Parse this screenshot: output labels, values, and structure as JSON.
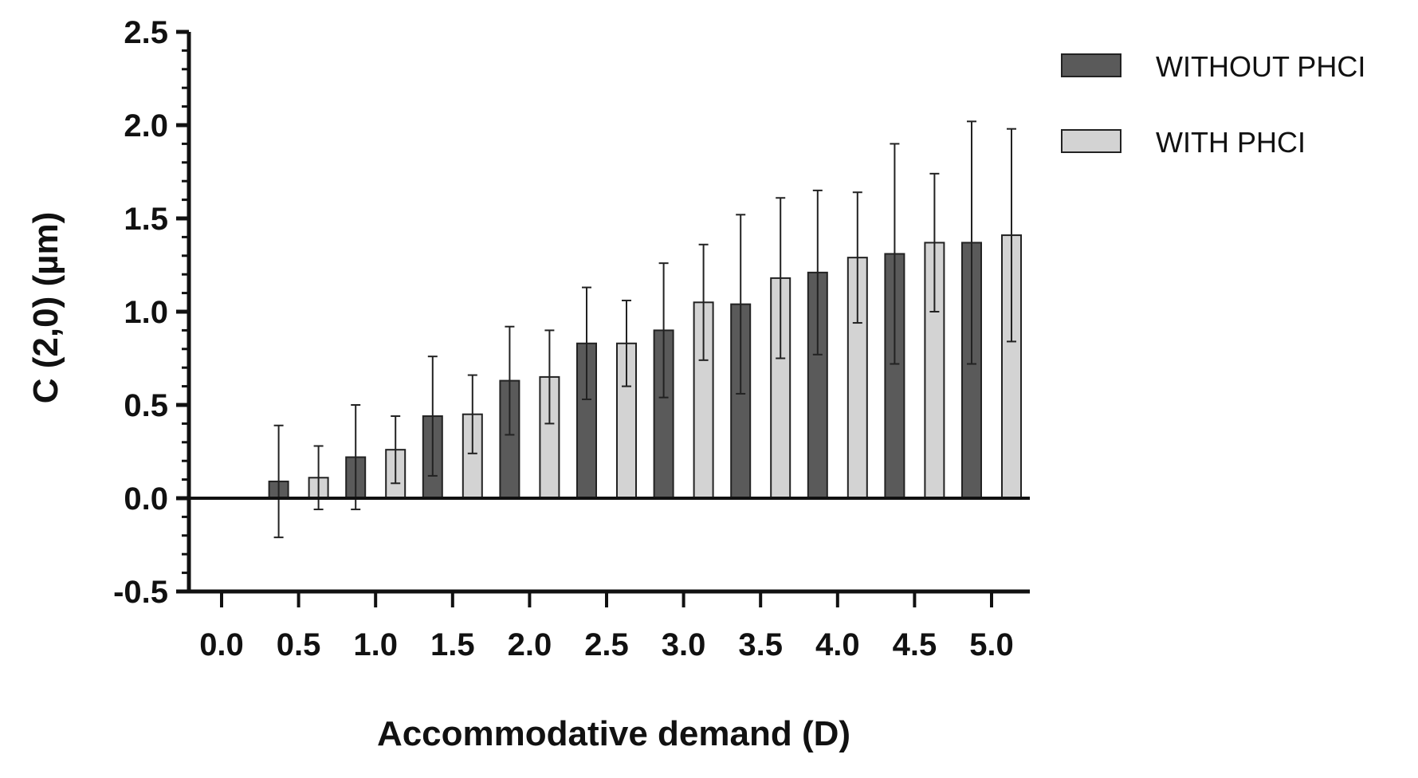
{
  "chart_data": {
    "type": "bar",
    "title": "",
    "xlabel": "Accommodative demand (D)",
    "ylabel": "C (2,0) (µm)",
    "categories": [
      "0.0",
      "0.5",
      "1.0",
      "1.5",
      "2.0",
      "2.5",
      "3.0",
      "3.5",
      "4.0",
      "4.5",
      "5.0"
    ],
    "ylim": [
      -0.5,
      2.5
    ],
    "yticks": [
      "-0.5",
      "0.0",
      "0.5",
      "1.0",
      "1.5",
      "2.0",
      "2.5"
    ],
    "grid": false,
    "legend_position": "top-right",
    "series": [
      {
        "name": "WITHOUT PHCI",
        "color": "#5a5a5a",
        "values": [
          null,
          0.09,
          0.22,
          0.44,
          0.63,
          0.83,
          0.9,
          1.04,
          1.21,
          1.31,
          1.37
        ],
        "error": [
          null,
          0.3,
          0.28,
          0.32,
          0.29,
          0.3,
          0.36,
          0.48,
          0.44,
          0.59,
          0.65
        ]
      },
      {
        "name": "WITH PHCI",
        "color": "#d3d3d3",
        "values": [
          null,
          0.11,
          0.26,
          0.45,
          0.65,
          0.83,
          1.05,
          1.18,
          1.29,
          1.37,
          1.41
        ],
        "error": [
          null,
          0.17,
          0.18,
          0.21,
          0.25,
          0.23,
          0.31,
          0.43,
          0.35,
          0.37,
          0.57
        ]
      }
    ]
  }
}
